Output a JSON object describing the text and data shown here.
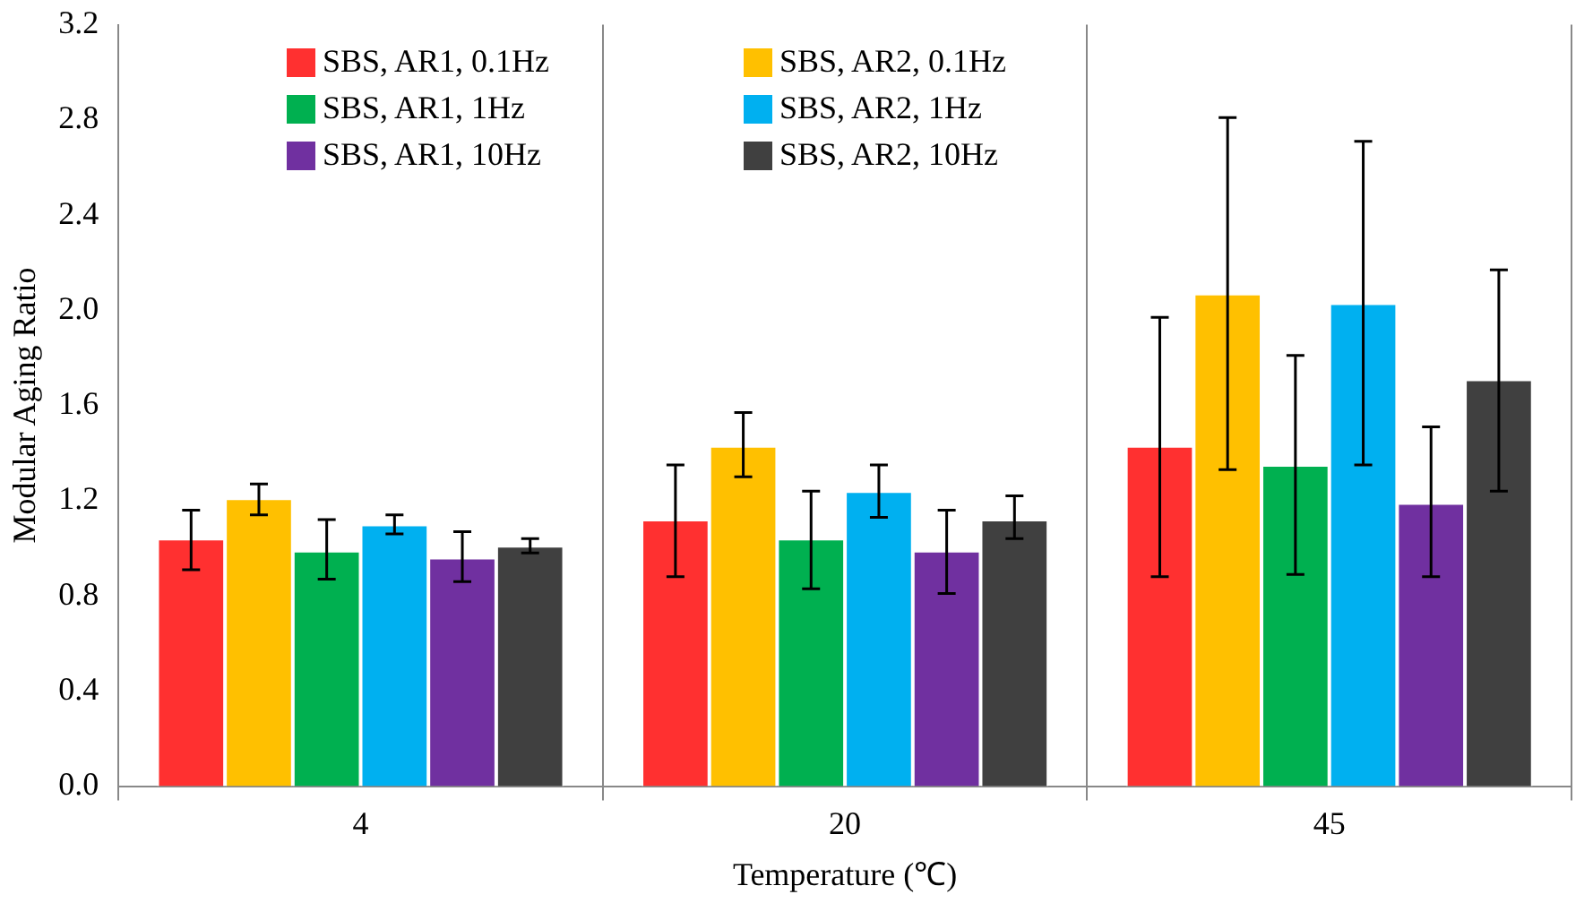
{
  "chart_data": {
    "type": "bar",
    "xlabel": "Temperature (℃)",
    "ylabel": "Modular Aging Ratio",
    "categories": [
      "4",
      "20",
      "45"
    ],
    "ylim": [
      0,
      3.2
    ],
    "yticks": [
      {
        "value": 0,
        "label": "0.0"
      },
      {
        "value": 0.4,
        "label": "0.4"
      },
      {
        "value": 0.8,
        "label": "0.8"
      },
      {
        "value": 1.2,
        "label": "1.2"
      },
      {
        "value": 1.6,
        "label": "1.6"
      },
      {
        "value": 2,
        "label": "2.0"
      },
      {
        "value": 2.4,
        "label": "2.4"
      },
      {
        "value": 2.8,
        "label": "2.8"
      },
      {
        "value": 3.2,
        "label": "3.2"
      }
    ],
    "grid": "x",
    "legend": "top",
    "series": [
      {
        "name": "SBS, AR1, 0.1Hz",
        "color": "#ff3030",
        "values": [
          1.04,
          1.12,
          1.43
        ],
        "errors": [
          [
            0.91,
            1.16
          ],
          [
            0.88,
            1.35
          ],
          [
            0.88,
            1.97
          ]
        ]
      },
      {
        "name": "SBS, AR2, 0.1Hz",
        "color": "#ffc000",
        "values": [
          1.21,
          1.43,
          2.07
        ],
        "errors": [
          [
            1.14,
            1.27
          ],
          [
            1.3,
            1.57
          ],
          [
            1.33,
            2.81
          ]
        ]
      },
      {
        "name": "SBS, AR1, 1Hz",
        "color": "#00b050",
        "values": [
          0.99,
          1.04,
          1.35
        ],
        "errors": [
          [
            0.87,
            1.12
          ],
          [
            0.83,
            1.24
          ],
          [
            0.89,
            1.81
          ]
        ]
      },
      {
        "name": "SBS, AR2, 1Hz",
        "color": "#00b0f0",
        "values": [
          1.1,
          1.24,
          2.03
        ],
        "errors": [
          [
            1.06,
            1.14
          ],
          [
            1.13,
            1.35
          ],
          [
            1.35,
            2.71
          ]
        ]
      },
      {
        "name": "SBS, AR1, 10Hz",
        "color": "#7030a0",
        "values": [
          0.96,
          0.99,
          1.19
        ],
        "errors": [
          [
            0.86,
            1.07
          ],
          [
            0.81,
            1.16
          ],
          [
            0.88,
            1.51
          ]
        ]
      },
      {
        "name": "SBS, AR2, 10Hz",
        "color": "#404040",
        "values": [
          1.01,
          1.12,
          1.71
        ],
        "errors": [
          [
            0.98,
            1.04
          ],
          [
            1.04,
            1.22
          ],
          [
            1.24,
            2.17
          ]
        ]
      }
    ]
  }
}
